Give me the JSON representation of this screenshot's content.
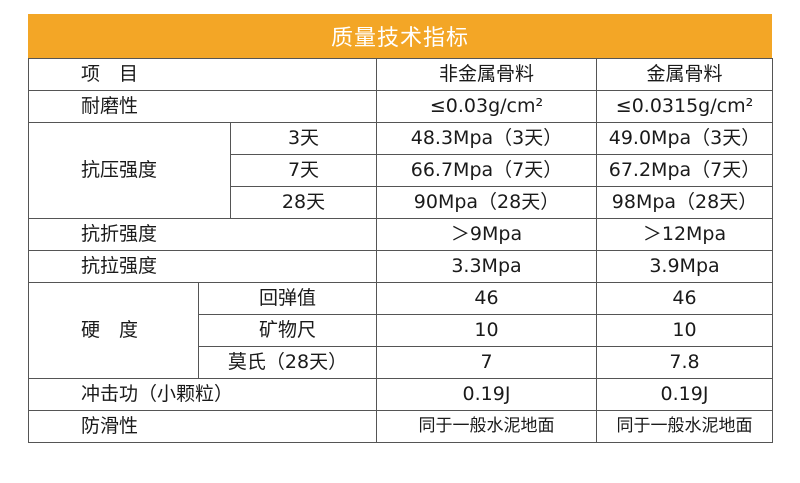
{
  "title": "质量技术指标",
  "columns": {
    "item": "项　目",
    "non_metal": "非金属骨料",
    "metal": "金属骨料"
  },
  "rows": {
    "wear": {
      "label": "耐磨性",
      "non_metal": "≤0.03g/cm²",
      "metal": "≤0.0315g/cm²"
    },
    "compressive": {
      "label": "抗压强度",
      "sub": [
        {
          "age": "3天",
          "non_metal": "48.3Mpa（3天）",
          "metal": "49.0Mpa（3天）"
        },
        {
          "age": "7天",
          "non_metal": "66.7Mpa（7天）",
          "metal": "67.2Mpa（7天）"
        },
        {
          "age": "28天",
          "non_metal": "90Mpa（28天）",
          "metal": "98Mpa（28天）"
        }
      ]
    },
    "flexural": {
      "label": "抗折强度",
      "non_metal": "＞9Mpa",
      "metal": "＞12Mpa"
    },
    "tensile": {
      "label": "抗拉强度",
      "non_metal": "3.3Mpa",
      "metal": "3.9Mpa"
    },
    "hardness": {
      "label": "硬　度",
      "sub": [
        {
          "method": "回弹值",
          "non_metal": "46",
          "metal": "46"
        },
        {
          "method": "矿物尺",
          "non_metal": "10",
          "metal": "10"
        },
        {
          "method": "莫氏（28天）",
          "non_metal": "7",
          "metal": "7.8"
        }
      ]
    },
    "impact": {
      "label": "冲击功（小颗粒）",
      "non_metal": "0.19J",
      "metal": "0.19J"
    },
    "slip": {
      "label": "防滑性",
      "non_metal": "同于一般水泥地面",
      "metal": "同于一般水泥地面"
    }
  }
}
